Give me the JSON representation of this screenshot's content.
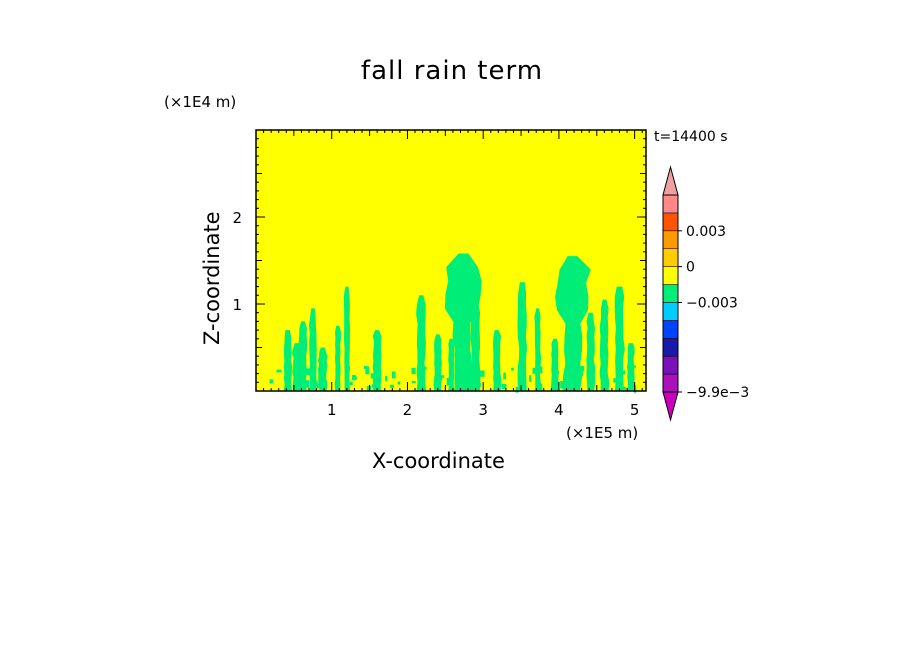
{
  "chart_data": {
    "type": "heatmap",
    "title": "fall rain term",
    "xlabel": "X-coordinate",
    "ylabel": "Z-coordinate",
    "x_unit": "(×1E5 m)",
    "y_unit": "(×1E4 m)",
    "time_label": "t=14400 s",
    "xlim": [
      0,
      5.15
    ],
    "ylim": [
      0,
      3
    ],
    "x_ticks": [
      1,
      2,
      3,
      4,
      5
    ],
    "y_ticks": [
      1,
      2
    ],
    "background_level": 0,
    "colorbar": {
      "levels": [
        -0.0099,
        -0.009,
        -0.0075,
        -0.006,
        -0.0045,
        -0.003,
        -0.0015,
        0,
        0.0015,
        0.003,
        0.0045,
        0.006
      ],
      "colors": [
        "#cc00bb",
        "#aa10bb",
        "#7a10b8",
        "#1a1aaa",
        "#0044ff",
        "#00ccff",
        "#00ee77",
        "#ffff00",
        "#ffcc00",
        "#ff9900",
        "#ff5500",
        "#ff8888",
        "#f0a0a0"
      ],
      "tick_labels": [
        "0.003",
        "0",
        "−0.003",
        "−9.9e−3"
      ],
      "tick_values": [
        0.003,
        0,
        -0.003,
        -0.0099
      ]
    },
    "features": {
      "color": "#00ee77",
      "value_range": [
        -0.0015,
        0
      ],
      "plumes": [
        {
          "x": 0.42,
          "top": 0.7
        },
        {
          "x": 0.55,
          "top": 0.55
        },
        {
          "x": 0.62,
          "top": 0.8
        },
        {
          "x": 0.75,
          "top": 0.95
        },
        {
          "x": 0.88,
          "top": 0.5
        },
        {
          "x": 1.08,
          "top": 0.75
        },
        {
          "x": 1.2,
          "top": 1.2
        },
        {
          "x": 1.6,
          "top": 0.7
        },
        {
          "x": 2.18,
          "top": 1.1
        },
        {
          "x": 2.4,
          "top": 0.65
        },
        {
          "x": 2.58,
          "top": 0.6
        },
        {
          "x": 2.73,
          "top": 1.58
        },
        {
          "x": 2.9,
          "top": 1.0
        },
        {
          "x": 3.18,
          "top": 0.7
        },
        {
          "x": 3.52,
          "top": 1.25
        },
        {
          "x": 3.72,
          "top": 0.95
        },
        {
          "x": 3.95,
          "top": 0.6
        },
        {
          "x": 4.18,
          "top": 1.55
        },
        {
          "x": 4.42,
          "top": 0.9
        },
        {
          "x": 4.6,
          "top": 1.05
        },
        {
          "x": 4.8,
          "top": 1.2
        },
        {
          "x": 4.95,
          "top": 0.55
        }
      ]
    }
  }
}
